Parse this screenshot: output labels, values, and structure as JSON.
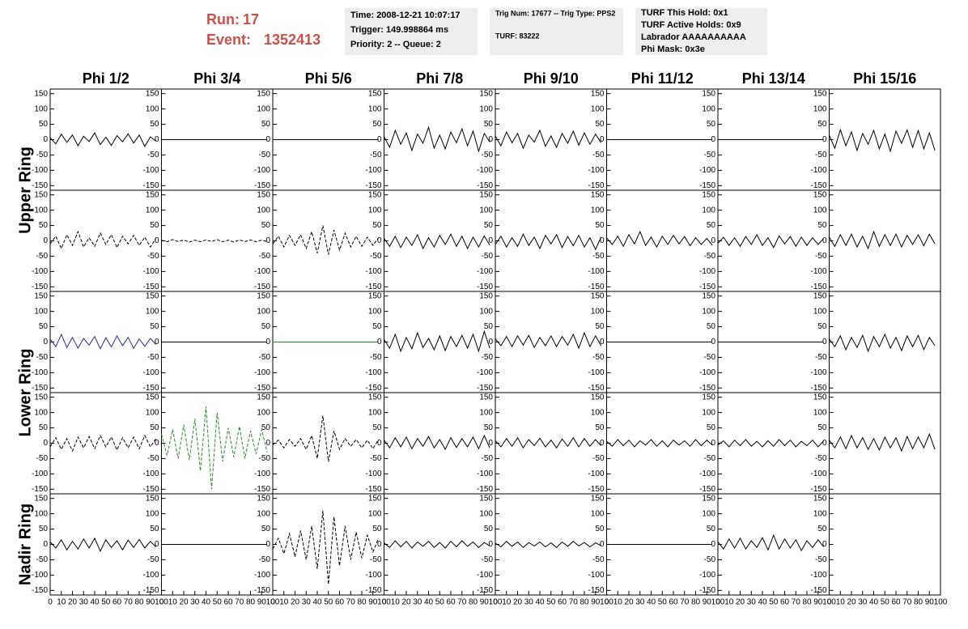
{
  "header": {
    "run_label": "Run:",
    "run": "17",
    "event_label": "Event:",
    "event": "1352413",
    "box1": [
      "Time: 2008-12-21 10:07:17",
      "Trigger: 149.998864 ms",
      "Priority: 2 -- Queue: 2"
    ],
    "box2": [
      "Trig Num: 17677 -- Trig Type: PPS2",
      "TURF: 83222"
    ],
    "box3": [
      "TURF This Hold: 0x1",
      "TURF Active Holds: 0x9",
      "Labrador AAAAAAAAAA",
      "Phi Mask: 0x3e"
    ]
  },
  "columns": [
    "Phi 1/2",
    "Phi 3/4",
    "Phi 5/6",
    "Phi 7/8",
    "Phi 9/10",
    "Phi 11/12",
    "Phi 13/14",
    "Phi 15/16"
  ],
  "row_groups": [
    {
      "label": "Upper Ring",
      "rows": [
        0,
        1
      ]
    },
    {
      "label": "Lower Ring",
      "rows": [
        2,
        3
      ]
    },
    {
      "label": "Nadir Ring",
      "rows": [
        4
      ]
    }
  ],
  "ylim": [
    -165,
    165
  ],
  "yticks": [
    150,
    100,
    50,
    0,
    -50,
    -100,
    -150
  ],
  "xlim": [
    0,
    100
  ],
  "xticks": [
    0,
    10,
    20,
    30,
    40,
    50,
    60,
    70,
    80,
    90,
    100
  ],
  "x": [
    0,
    5,
    10,
    15,
    20,
    25,
    30,
    35,
    40,
    45,
    50,
    55,
    60,
    65,
    70,
    75,
    80,
    85,
    90,
    95
  ],
  "panels": [
    [
      {
        "color": "#000000",
        "style": "solid",
        "values": [
          6,
          -14,
          18,
          -9,
          15,
          -20,
          11,
          -6,
          22,
          -16,
          8,
          -19,
          13,
          -7,
          19,
          -11,
          15,
          -22,
          9,
          -5
        ]
      },
      {
        "color": "#000000",
        "style": "solid",
        "values": [
          0,
          0,
          0,
          0,
          0,
          0,
          0,
          0,
          0,
          0,
          0,
          0,
          0,
          0,
          0,
          0,
          0,
          0,
          0,
          0
        ]
      },
      {
        "color": "#000000",
        "style": "solid",
        "values": [
          0,
          0,
          0,
          0,
          0,
          0,
          0,
          0,
          0,
          0,
          0,
          0,
          0,
          0,
          0,
          0,
          0,
          0,
          0,
          0
        ]
      },
      {
        "color": "#000000",
        "style": "solid",
        "values": [
          10,
          -25,
          30,
          -15,
          22,
          -35,
          18,
          -12,
          40,
          -28,
          15,
          -30,
          25,
          -10,
          35,
          -20,
          28,
          -38,
          20,
          -8
        ]
      },
      {
        "color": "#000000",
        "style": "solid",
        "values": [
          12,
          -20,
          25,
          -10,
          20,
          -28,
          15,
          -8,
          30,
          -22,
          12,
          -25,
          20,
          -12,
          28,
          -18,
          22,
          -15,
          18,
          -10
        ]
      },
      {
        "color": "#000000",
        "style": "solid",
        "values": [
          0,
          0,
          0,
          0,
          0,
          0,
          0,
          0,
          0,
          0,
          0,
          0,
          0,
          0,
          0,
          0,
          0,
          0,
          0,
          0
        ]
      },
      {
        "color": "#000000",
        "style": "solid",
        "values": [
          0,
          0,
          0,
          0,
          0,
          0,
          0,
          0,
          0,
          0,
          0,
          0,
          0,
          0,
          0,
          0,
          0,
          0,
          0,
          0
        ]
      },
      {
        "color": "#000000",
        "style": "solid",
        "values": [
          15,
          -28,
          32,
          -20,
          25,
          -35,
          20,
          -15,
          30,
          -30,
          18,
          -38,
          28,
          -12,
          32,
          -25,
          30,
          -30,
          22,
          -35
        ]
      }
    ],
    [
      {
        "color": "#000000",
        "style": "dashed",
        "values": [
          -10,
          15,
          -25,
          20,
          -15,
          30,
          -20,
          10,
          -18,
          25,
          -12,
          20,
          -22,
          15,
          -10,
          18,
          -15,
          12,
          -20,
          8
        ]
      },
      {
        "color": "#000000",
        "style": "dashed",
        "values": [
          2,
          -3,
          4,
          -2,
          3,
          -4,
          2,
          -3,
          3,
          -2,
          4,
          -3,
          2,
          -4,
          3,
          -2,
          3,
          -3,
          2,
          -2
        ]
      },
      {
        "color": "#000000",
        "style": "dashed",
        "values": [
          -10,
          15,
          -20,
          18,
          -15,
          20,
          -25,
          30,
          -40,
          50,
          -45,
          35,
          -30,
          25,
          -20,
          15,
          -18,
          12,
          -15,
          10
        ]
      },
      {
        "color": "#000000",
        "style": "solid",
        "values": [
          8,
          -18,
          15,
          -22,
          12,
          -15,
          20,
          -25,
          10,
          -20,
          18,
          -12,
          22,
          -18,
          15,
          -25,
          12,
          -20,
          16,
          -14
        ]
      },
      {
        "color": "#000000",
        "style": "solid",
        "values": [
          -12,
          15,
          -20,
          10,
          -18,
          22,
          -15,
          12,
          -25,
          18,
          -10,
          20,
          -22,
          14,
          -16,
          18,
          -20,
          10,
          -28,
          12
        ]
      },
      {
        "color": "#000000",
        "style": "solid",
        "values": [
          10,
          -12,
          15,
          -18,
          20,
          -10,
          30,
          -15,
          12,
          -20,
          15,
          -12,
          18,
          -10,
          14,
          -16,
          10,
          -12,
          8,
          -14
        ]
      },
      {
        "color": "#000000",
        "style": "solid",
        "values": [
          -8,
          12,
          -15,
          10,
          -18,
          14,
          -12,
          20,
          -15,
          10,
          -22,
          16,
          -10,
          14,
          -18,
          12,
          -15,
          10,
          -12,
          8
        ]
      },
      {
        "color": "#000000",
        "style": "solid",
        "values": [
          12,
          -18,
          20,
          -15,
          22,
          -20,
          15,
          -25,
          30,
          -18,
          20,
          -15,
          22,
          -20,
          18,
          -12,
          20,
          -16,
          22,
          -10
        ]
      }
    ],
    [
      {
        "color": "#2a2a9a",
        "style": "solid",
        "values": [
          10,
          -15,
          25,
          -18,
          15,
          -20,
          12,
          -10,
          18,
          -22,
          14,
          -16,
          20,
          -12,
          15,
          -20,
          10,
          -14,
          12,
          -8
        ]
      },
      {
        "color": "#000000",
        "style": "solid",
        "values": [
          0,
          0,
          0,
          0,
          0,
          0,
          0,
          0,
          0,
          0,
          0,
          0,
          0,
          0,
          0,
          0,
          0,
          0,
          0,
          0
        ]
      },
      {
        "color": "#2a8a2a",
        "style": "solid",
        "values": [
          0,
          0,
          0,
          0,
          0,
          0,
          0,
          0,
          0,
          0,
          0,
          0,
          0,
          0,
          0,
          0,
          0,
          0,
          0,
          0
        ]
      },
      {
        "color": "#000000",
        "style": "solid",
        "values": [
          8,
          -20,
          25,
          -30,
          15,
          -22,
          30,
          -18,
          12,
          -25,
          20,
          -28,
          18,
          -15,
          22,
          -20,
          25,
          -30,
          35,
          -20
        ]
      },
      {
        "color": "#000000",
        "style": "solid",
        "values": [
          10,
          -12,
          18,
          -15,
          20,
          -10,
          22,
          -18,
          15,
          -12,
          20,
          -15,
          18,
          -10,
          25,
          -20,
          30,
          -15,
          20,
          -12
        ]
      },
      {
        "color": "#000000",
        "style": "solid",
        "values": [
          0,
          0,
          0,
          0,
          0,
          0,
          0,
          0,
          0,
          0,
          0,
          0,
          0,
          0,
          0,
          0,
          0,
          0,
          0,
          0
        ]
      },
      {
        "color": "#000000",
        "style": "solid",
        "values": [
          0,
          0,
          0,
          0,
          0,
          0,
          0,
          0,
          0,
          0,
          0,
          0,
          0,
          0,
          0,
          0,
          0,
          0,
          0,
          0
        ]
      },
      {
        "color": "#000000",
        "style": "solid",
        "values": [
          10,
          -15,
          20,
          -25,
          15,
          -18,
          22,
          -30,
          18,
          -15,
          25,
          -20,
          15,
          -28,
          20,
          -15,
          22,
          -25,
          15,
          -12
        ]
      }
    ],
    [
      {
        "color": "#000000",
        "style": "dashed",
        "values": [
          -12,
          18,
          -20,
          15,
          -25,
          20,
          -15,
          22,
          -18,
          25,
          -12,
          20,
          -22,
          18,
          -15,
          20,
          -18,
          25,
          -12,
          15
        ]
      },
      {
        "color": "#2a8a2a",
        "style": "dashed",
        "values": [
          30,
          -40,
          45,
          -50,
          60,
          -55,
          80,
          -90,
          120,
          -150,
          100,
          -60,
          50,
          -45,
          55,
          -50,
          40,
          -35,
          45,
          -30
        ]
      },
      {
        "color": "#000000",
        "style": "dashed",
        "values": [
          -5,
          10,
          -15,
          12,
          -10,
          15,
          -20,
          25,
          -50,
          90,
          -60,
          40,
          -20,
          15,
          -10,
          12,
          -15,
          10,
          -18,
          12
        ]
      },
      {
        "color": "#000000",
        "style": "solid",
        "values": [
          10,
          -15,
          18,
          -12,
          20,
          -18,
          15,
          -10,
          22,
          -15,
          12,
          -20,
          18,
          -14,
          15,
          -12,
          20,
          -18,
          25,
          -15
        ]
      },
      {
        "color": "#000000",
        "style": "solid",
        "values": [
          8,
          -12,
          15,
          -10,
          18,
          -15,
          12,
          -8,
          16,
          -12,
          10,
          -15,
          14,
          -10,
          18,
          -12,
          15,
          -10,
          12,
          -8
        ]
      },
      {
        "color": "#000000",
        "style": "solid",
        "values": [
          6,
          -10,
          12,
          -8,
          10,
          -12,
          8,
          -6,
          12,
          -10,
          8,
          -12,
          10,
          -6,
          8,
          -10,
          12,
          -8,
          10,
          -6
        ]
      },
      {
        "color": "#000000",
        "style": "solid",
        "values": [
          -6,
          8,
          -12,
          10,
          -8,
          12,
          -10,
          6,
          -12,
          8,
          -10,
          12,
          -8,
          10,
          -12,
          6,
          -8,
          10,
          -12,
          8
        ]
      },
      {
        "color": "#000000",
        "style": "solid",
        "values": [
          10,
          -15,
          20,
          -18,
          25,
          -15,
          18,
          -20,
          15,
          -22,
          20,
          -15,
          18,
          -25,
          22,
          -18,
          20,
          -15,
          30,
          -20
        ]
      }
    ],
    [
      {
        "color": "#000000",
        "style": "solid",
        "values": [
          8,
          -12,
          15,
          -18,
          10,
          -15,
          18,
          -12,
          20,
          -22,
          15,
          -10,
          12,
          -18,
          14,
          -10,
          16,
          -12,
          10,
          -8
        ]
      },
      {
        "color": "#000000",
        "style": "solid",
        "values": [
          0,
          0,
          0,
          0,
          0,
          0,
          0,
          0,
          0,
          0,
          0,
          0,
          0,
          0,
          0,
          0,
          0,
          0,
          0,
          0
        ]
      },
      {
        "color": "#000000",
        "style": "dashed",
        "values": [
          -15,
          20,
          -30,
          35,
          -40,
          45,
          -50,
          60,
          -80,
          110,
          -130,
          90,
          -70,
          60,
          -50,
          40,
          -45,
          30,
          -25,
          20
        ]
      },
      {
        "color": "#000000",
        "style": "solid",
        "values": [
          5,
          -10,
          12,
          -8,
          10,
          -12,
          8,
          -6,
          10,
          -10,
          6,
          -12,
          10,
          -8,
          12,
          -6,
          8,
          -10,
          6,
          -5
        ]
      },
      {
        "color": "#000000",
        "style": "solid",
        "values": [
          4,
          -8,
          10,
          -6,
          8,
          -10,
          6,
          -5,
          8,
          -8,
          5,
          -10,
          8,
          -6,
          10,
          -5,
          6,
          -8,
          5,
          -4
        ]
      },
      {
        "color": "#000000",
        "style": "solid",
        "values": [
          0,
          0,
          0,
          0,
          0,
          0,
          0,
          0,
          0,
          0,
          0,
          0,
          0,
          0,
          0,
          0,
          0,
          0,
          0,
          0
        ]
      },
      {
        "color": "#000000",
        "style": "solid",
        "values": [
          8,
          -15,
          18,
          -12,
          20,
          -15,
          12,
          -10,
          22,
          -18,
          30,
          -15,
          18,
          -12,
          15,
          -20,
          12,
          -10,
          15,
          -8
        ]
      },
      null
    ]
  ]
}
